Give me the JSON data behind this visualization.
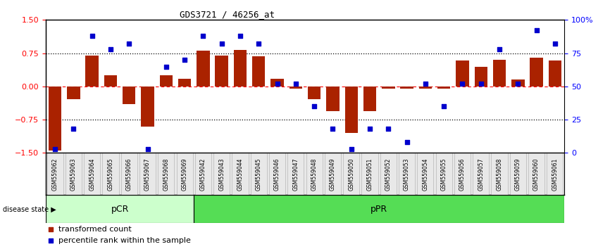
{
  "title": "GDS3721 / 46256_at",
  "samples": [
    "GSM559062",
    "GSM559063",
    "GSM559064",
    "GSM559065",
    "GSM559066",
    "GSM559067",
    "GSM559068",
    "GSM559069",
    "GSM559042",
    "GSM559043",
    "GSM559044",
    "GSM559045",
    "GSM559046",
    "GSM559047",
    "GSM559048",
    "GSM559049",
    "GSM559050",
    "GSM559051",
    "GSM559052",
    "GSM559053",
    "GSM559054",
    "GSM559055",
    "GSM559056",
    "GSM559057",
    "GSM559058",
    "GSM559059",
    "GSM559060",
    "GSM559061"
  ],
  "bar_values": [
    -1.45,
    -0.28,
    0.7,
    0.25,
    -0.4,
    -0.9,
    0.25,
    0.18,
    0.8,
    0.7,
    0.82,
    0.68,
    0.18,
    -0.05,
    -0.28,
    -0.55,
    -1.05,
    -0.55,
    -0.05,
    -0.05,
    -0.05,
    -0.05,
    0.58,
    0.45,
    0.6,
    0.15,
    0.65,
    0.58
  ],
  "scatter_values": [
    3,
    18,
    88,
    78,
    82,
    3,
    65,
    70,
    88,
    82,
    88,
    82,
    52,
    52,
    35,
    18,
    3,
    18,
    18,
    8,
    52,
    35,
    52,
    52,
    78,
    52,
    92,
    82
  ],
  "pCR_count": 8,
  "pPR_count": 20,
  "bar_color": "#aa2200",
  "scatter_color": "#0000cc",
  "pCR_color": "#ccffcc",
  "pPR_color": "#55dd55",
  "ylim_left": [
    -1.5,
    1.5
  ],
  "ylim_right": [
    0,
    100
  ],
  "yticks_left": [
    -1.5,
    -0.75,
    0,
    0.75,
    1.5
  ],
  "yticks_right": [
    0,
    25,
    50,
    75,
    100
  ],
  "hlines_dotted": [
    -0.75,
    0.75
  ],
  "hline_dashed": 0,
  "background_color": "#e8e8e8"
}
